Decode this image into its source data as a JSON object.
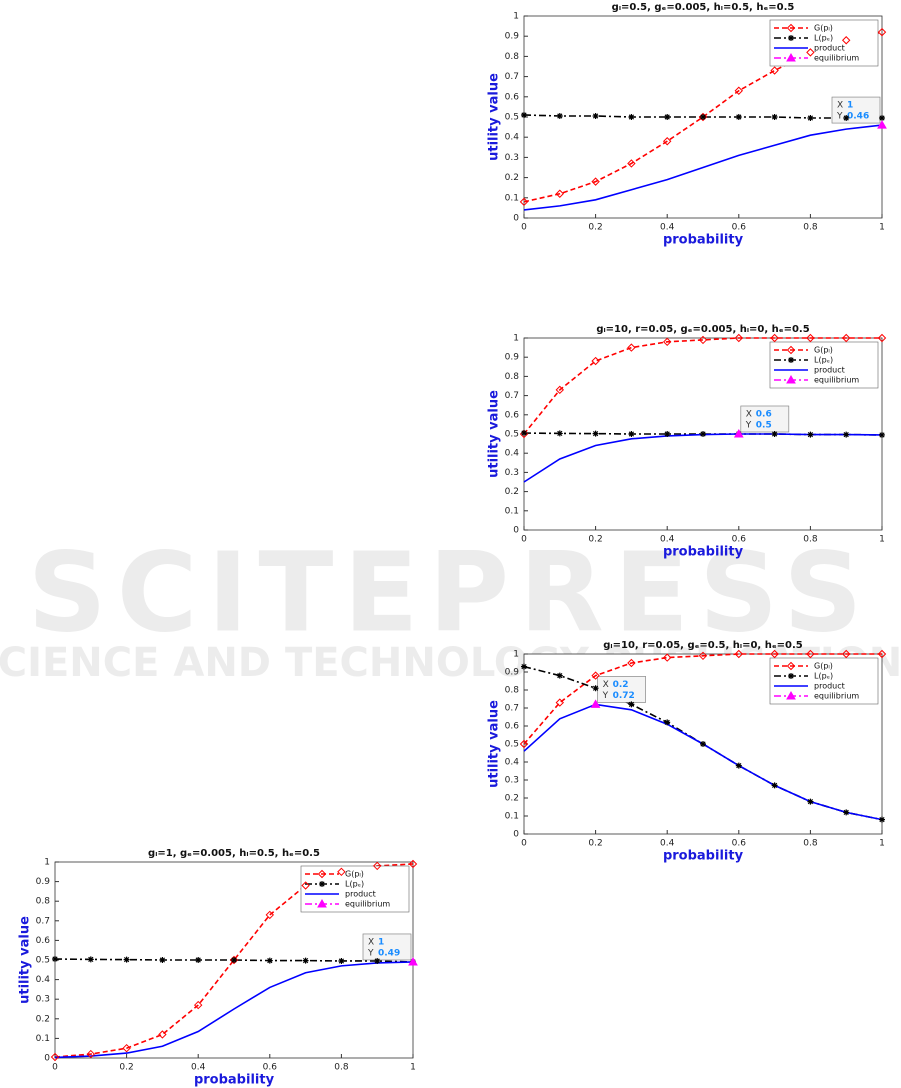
{
  "watermark": {
    "title": "SCITEPRESS",
    "subtitle": "SCIENCE AND TECHNOLOGY PUBLICATIONS"
  },
  "chart_data": [
    {
      "type": "line",
      "title": "gₗ=0.5,  gₑ=0.005, hₗ=0.5, hₑ=0.5",
      "xlabel": "probability",
      "ylabel": "utility value",
      "x": [
        0,
        0.1,
        0.2,
        0.3,
        0.4,
        0.5,
        0.6,
        0.7,
        0.8,
        0.9,
        1
      ],
      "series": [
        {
          "name": "G(pₗ)",
          "color": "#ff0000",
          "style": "dashed",
          "marker": "diamond",
          "values": [
            0.08,
            0.12,
            0.18,
            0.27,
            0.38,
            0.5,
            0.63,
            0.73,
            0.82,
            0.88,
            0.92
          ]
        },
        {
          "name": "L(pₑ)",
          "color": "#000000",
          "style": "dashdot",
          "marker": "star",
          "values": [
            0.51,
            0.505,
            0.505,
            0.5,
            0.5,
            0.5,
            0.5,
            0.5,
            0.495,
            0.495,
            0.495
          ]
        },
        {
          "name": "product",
          "color": "#0000ff",
          "style": "solid",
          "marker": "none",
          "values": [
            0.04,
            0.06,
            0.09,
            0.14,
            0.19,
            0.25,
            0.31,
            0.36,
            0.41,
            0.44,
            0.46
          ]
        },
        {
          "name": "equilibrium",
          "color": "#ff00ff",
          "style": "dashdot",
          "marker": "triangle",
          "x": [
            1
          ],
          "values": [
            0.46
          ]
        }
      ],
      "xlim": [
        0,
        1
      ],
      "ylim": [
        0,
        1
      ],
      "xticks": [
        0,
        0.2,
        0.4,
        0.6,
        0.8,
        1
      ],
      "yticks": [
        0,
        0.1,
        0.2,
        0.3,
        0.4,
        0.5,
        0.6,
        0.7,
        0.8,
        0.9,
        1
      ],
      "legend": "upper right",
      "datatip": {
        "x_label": "X",
        "x": 1,
        "y_label": "Y",
        "y": 0.46
      }
    },
    {
      "type": "line",
      "title": "gₗ=10, r=0.05,  gₑ=0.005, hₗ=0, hₑ=0.5",
      "xlabel": "probability",
      "ylabel": "utility value",
      "x": [
        0,
        0.1,
        0.2,
        0.3,
        0.4,
        0.5,
        0.6,
        0.7,
        0.8,
        0.9,
        1
      ],
      "series": [
        {
          "name": "G(pₗ)",
          "color": "#ff0000",
          "style": "dashed",
          "marker": "diamond",
          "values": [
            0.5,
            0.73,
            0.88,
            0.95,
            0.98,
            0.99,
            1,
            1,
            1,
            1,
            1
          ]
        },
        {
          "name": "L(pₑ)",
          "color": "#000000",
          "style": "dashdot",
          "marker": "star",
          "values": [
            0.505,
            0.503,
            0.502,
            0.5,
            0.5,
            0.5,
            0.5,
            0.5,
            0.497,
            0.497,
            0.495
          ]
        },
        {
          "name": "product",
          "color": "#0000ff",
          "style": "solid",
          "marker": "none",
          "values": [
            0.25,
            0.37,
            0.44,
            0.475,
            0.49,
            0.497,
            0.5,
            0.5,
            0.497,
            0.497,
            0.495
          ]
        },
        {
          "name": "equilibrium",
          "color": "#ff00ff",
          "style": "dashdot",
          "marker": "triangle",
          "x": [
            0.6
          ],
          "values": [
            0.5
          ]
        }
      ],
      "xlim": [
        0,
        1
      ],
      "ylim": [
        0,
        1
      ],
      "xticks": [
        0,
        0.2,
        0.4,
        0.6,
        0.8,
        1
      ],
      "yticks": [
        0,
        0.1,
        0.2,
        0.3,
        0.4,
        0.5,
        0.6,
        0.7,
        0.8,
        0.9,
        1
      ],
      "legend": "upper right",
      "datatip": {
        "x_label": "X",
        "x": 0.6,
        "y_label": "Y",
        "y": 0.5
      }
    },
    {
      "type": "line",
      "title": "gₗ=10, r=0.05,  gₑ=0.5, hₗ=0, hₑ=0.5",
      "xlabel": "probability",
      "ylabel": "utility value",
      "x": [
        0,
        0.1,
        0.2,
        0.3,
        0.4,
        0.5,
        0.6,
        0.7,
        0.8,
        0.9,
        1
      ],
      "series": [
        {
          "name": "G(pₗ)",
          "color": "#ff0000",
          "style": "dashed",
          "marker": "diamond",
          "values": [
            0.5,
            0.73,
            0.88,
            0.95,
            0.98,
            0.99,
            1,
            1,
            1,
            1,
            1
          ]
        },
        {
          "name": "L(pₑ)",
          "color": "#000000",
          "style": "dashdot",
          "marker": "star",
          "values": [
            0.93,
            0.88,
            0.81,
            0.72,
            0.62,
            0.5,
            0.38,
            0.27,
            0.18,
            0.12,
            0.08
          ]
        },
        {
          "name": "product",
          "color": "#0000ff",
          "style": "solid",
          "marker": "none",
          "values": [
            0.46,
            0.64,
            0.72,
            0.69,
            0.61,
            0.5,
            0.38,
            0.27,
            0.18,
            0.12,
            0.08
          ]
        },
        {
          "name": "equilibrium",
          "color": "#ff00ff",
          "style": "dashdot",
          "marker": "triangle",
          "x": [
            0.2
          ],
          "values": [
            0.72
          ]
        }
      ],
      "xlim": [
        0,
        1
      ],
      "ylim": [
        0,
        1
      ],
      "xticks": [
        0,
        0.2,
        0.4,
        0.6,
        0.8,
        1
      ],
      "yticks": [
        0,
        0.1,
        0.2,
        0.3,
        0.4,
        0.5,
        0.6,
        0.7,
        0.8,
        0.9,
        1
      ],
      "legend": "upper right",
      "datatip": {
        "x_label": "X",
        "x": 0.2,
        "y_label": "Y",
        "y": 0.72
      }
    },
    {
      "type": "line",
      "title": "gₗ=1,  gₑ=0.005, hₗ=0.5, hₑ=0.5",
      "xlabel": "probability",
      "ylabel": "utility value",
      "x": [
        0,
        0.1,
        0.2,
        0.3,
        0.4,
        0.5,
        0.6,
        0.7,
        0.8,
        0.9,
        1
      ],
      "series": [
        {
          "name": "G(pₗ)",
          "color": "#ff0000",
          "style": "dashed",
          "marker": "diamond",
          "values": [
            0.005,
            0.02,
            0.05,
            0.12,
            0.27,
            0.5,
            0.73,
            0.88,
            0.95,
            0.98,
            0.99
          ]
        },
        {
          "name": "L(pₑ)",
          "color": "#000000",
          "style": "dashdot",
          "marker": "star",
          "values": [
            0.505,
            0.503,
            0.502,
            0.5,
            0.5,
            0.5,
            0.497,
            0.497,
            0.495,
            0.495,
            0.49
          ]
        },
        {
          "name": "product",
          "color": "#0000ff",
          "style": "solid",
          "marker": "none",
          "values": [
            0.003,
            0.01,
            0.025,
            0.06,
            0.135,
            0.25,
            0.36,
            0.435,
            0.47,
            0.485,
            0.49
          ]
        },
        {
          "name": "equilibrium",
          "color": "#ff00ff",
          "style": "dashdot",
          "marker": "triangle",
          "x": [
            1
          ],
          "values": [
            0.49
          ]
        }
      ],
      "xlim": [
        0,
        1
      ],
      "ylim": [
        0,
        1
      ],
      "xticks": [
        0,
        0.2,
        0.4,
        0.6,
        0.8,
        1
      ],
      "yticks": [
        0,
        0.1,
        0.2,
        0.3,
        0.4,
        0.5,
        0.6,
        0.7,
        0.8,
        0.9,
        1
      ],
      "legend": "upper right",
      "datatip": {
        "x_label": "X",
        "x": 1,
        "y_label": "Y",
        "y": 0.49
      }
    }
  ]
}
